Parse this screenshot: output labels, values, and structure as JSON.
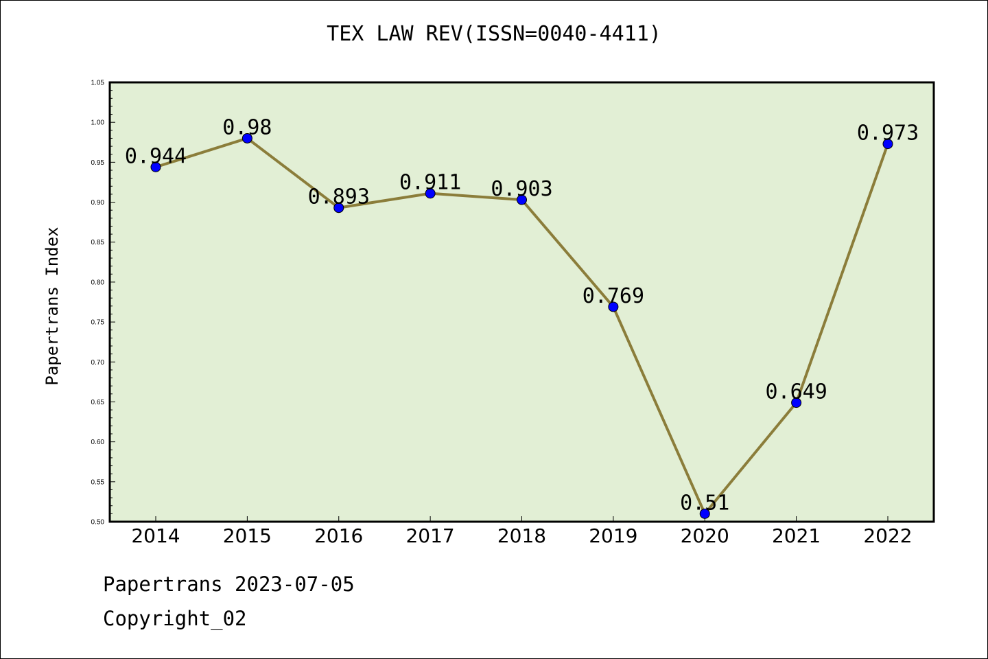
{
  "chart_data": {
    "type": "line",
    "title": "TEX LAW REV(ISSN=0040-4411)",
    "ylabel": "Papertrans Index",
    "xlabel": "",
    "categories": [
      "2014",
      "2015",
      "2016",
      "2017",
      "2018",
      "2019",
      "2020",
      "2021",
      "2022"
    ],
    "series": [
      {
        "values": [
          0.944,
          0.98,
          0.893,
          0.911,
          0.903,
          0.769,
          0.51,
          0.649,
          0.973
        ],
        "data_labels": [
          "0.944",
          "0.98",
          "0.893",
          "0.911",
          "0.903",
          "0.769",
          "0.51",
          "0.649",
          "0.973"
        ]
      }
    ],
    "ylim": [
      0.5,
      1.05
    ],
    "yticks": [
      "0.50",
      "0.55",
      "0.60",
      "0.65",
      "0.70",
      "0.75",
      "0.80",
      "0.85",
      "0.90",
      "0.95",
      "1.00",
      "1.05"
    ],
    "grid": false,
    "colors": {
      "plot_background": "#e2efd5",
      "line": "#8b7d3a",
      "marker": "#0000ff"
    }
  },
  "footer": {
    "source_line": "Papertrans 2023-07-05",
    "copyright_line": "Copyright_02"
  }
}
